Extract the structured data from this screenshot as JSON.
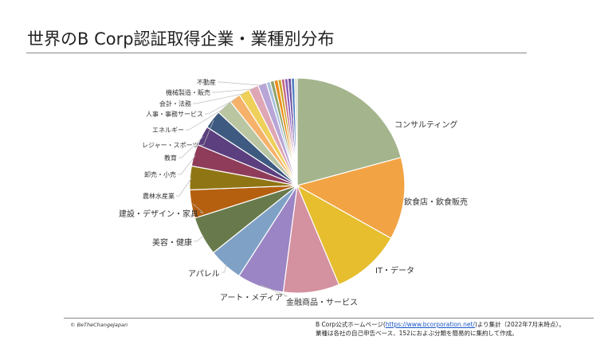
{
  "title": "世界のB Corp認証取得企業・業種別分布",
  "footer": {
    "copyright": "© BeTheChangeJapan",
    "source_prefix": "B Corp公式ホームページ(",
    "source_link": "https://www.bcorporation.net/",
    "source_suffix": ")より集計（2022年7月末時点）。",
    "note": "業種は各社の自己申告ベース、152におよぶ分類を簡易的に集約して作成。"
  },
  "chart_data": {
    "type": "pie",
    "start": "12 o'clock, clockwise",
    "values_note_unit": "share (%) estimated",
    "slices": [
      {
        "label": "コンサルティング",
        "value": 21.0,
        "color": "#A4B48C"
      },
      {
        "label": "飲食店・飲食販売",
        "value": 12.5,
        "color": "#F2A444"
      },
      {
        "label": "IT・データ",
        "value": 10.6,
        "color": "#E6BE2E"
      },
      {
        "label": "金融商品・サービス",
        "value": 8.5,
        "color": "#D4919F"
      },
      {
        "label": "アート・メディア",
        "value": 7.1,
        "color": "#9B85C4"
      },
      {
        "label": "アパレル",
        "value": 5.2,
        "color": "#7FA1C6"
      },
      {
        "label": "美容・健康",
        "value": 5.9,
        "color": "#687A4C"
      },
      {
        "label": "建設・デザイン・家具",
        "value": 4.3,
        "color": "#B5600F"
      },
      {
        "label": "農林水産業",
        "value": 3.6,
        "color": "#8F7514"
      },
      {
        "label": "卸売・小売",
        "value": 3.3,
        "color": "#8F3C5A"
      },
      {
        "label": "教育",
        "value": 3.0,
        "color": "#5B3F7E"
      },
      {
        "label": "レジャー・スポーツ",
        "value": 2.8,
        "color": "#3E5A80"
      },
      {
        "label": "エネルギー",
        "value": 2.4,
        "color": "#BAC5A2"
      },
      {
        "label": "人事・事務サービス",
        "value": 1.7,
        "color": "#F6B26B"
      },
      {
        "label": "会計・法務",
        "value": 1.6,
        "color": "#EED05A"
      },
      {
        "label": "機械製造・販売",
        "value": 1.5,
        "color": "#DFA7B5"
      },
      {
        "label": "不動産",
        "value": 1.3,
        "color": "#B7A6D6"
      },
      {
        "label": "",
        "value": 0.6,
        "color": "#A8C0DD"
      },
      {
        "label": "",
        "value": 0.6,
        "color": "#8FA36A"
      },
      {
        "label": "",
        "value": 0.6,
        "color": "#EB8C1A"
      },
      {
        "label": "",
        "value": 0.5,
        "color": "#C9A523"
      },
      {
        "label": "",
        "value": 0.5,
        "color": "#C56A86"
      },
      {
        "label": "",
        "value": 0.5,
        "color": "#8E5FB8"
      },
      {
        "label": "",
        "value": 0.5,
        "color": "#6E4FA0"
      },
      {
        "label": "",
        "value": 0.5,
        "color": "#4F7FC0"
      },
      {
        "label": "",
        "value": 0.4,
        "color": "#D6DCC8"
      }
    ]
  }
}
